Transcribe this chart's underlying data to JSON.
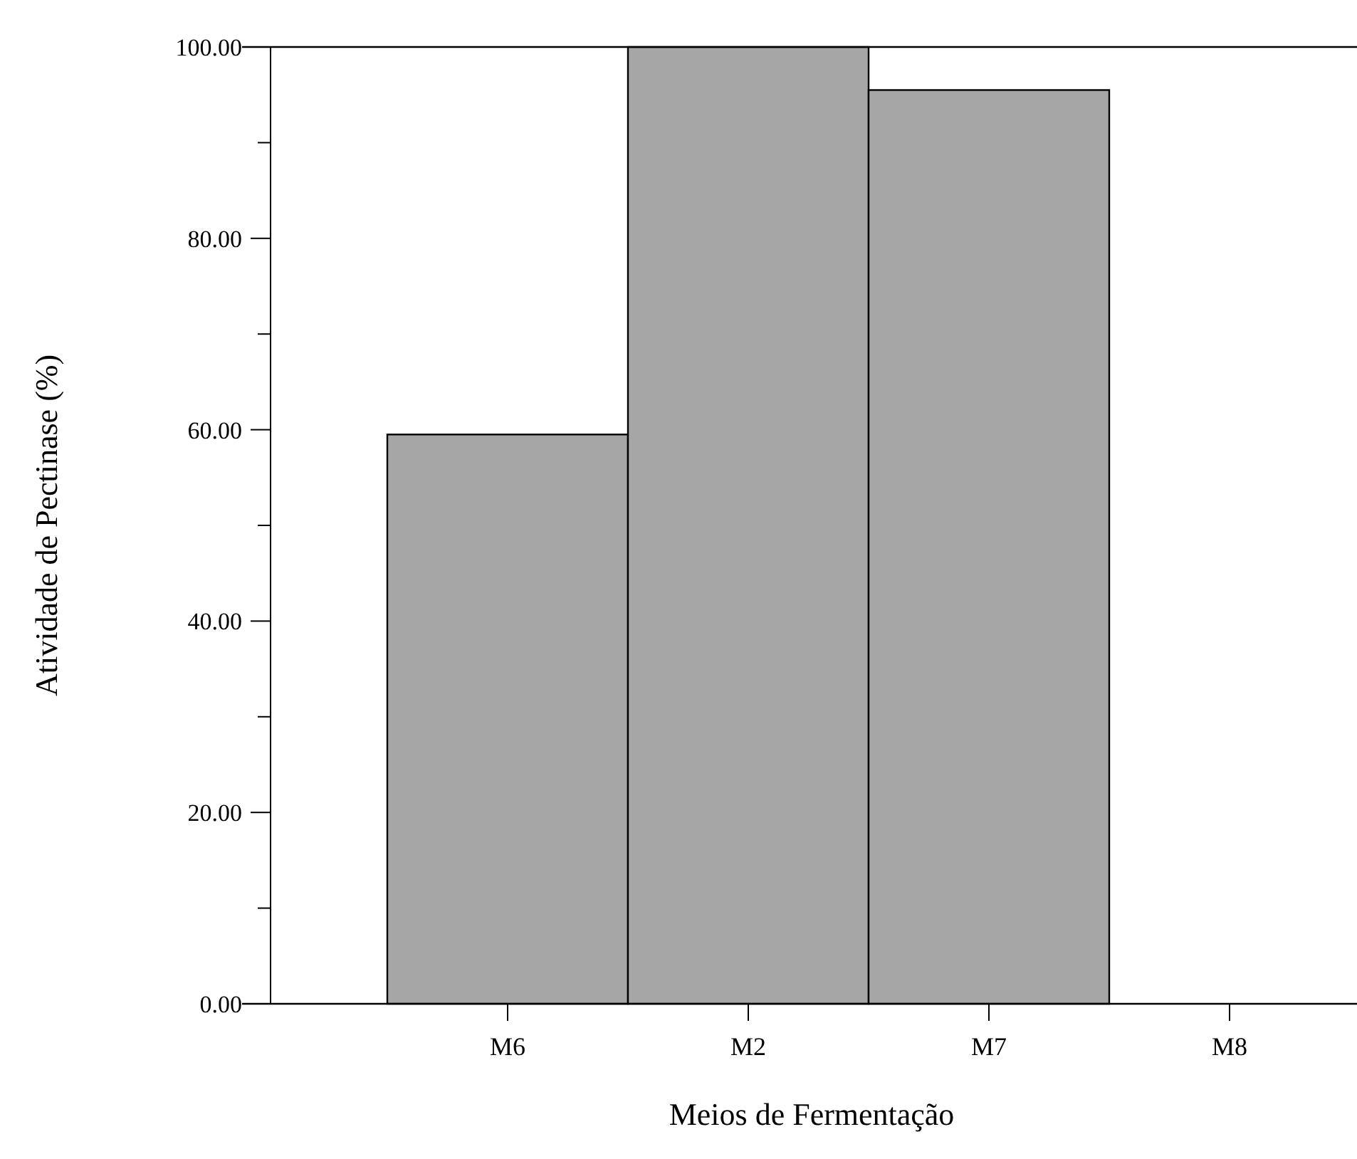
{
  "chart_data": {
    "type": "bar",
    "xlabel": "Meios de Fermentação",
    "ylabel": "Atividade de Pectinase (%)",
    "categories": [
      "M6",
      "M2",
      "M7",
      "M8"
    ],
    "values": [
      59.5,
      100,
      95.5,
      0
    ],
    "color": "#a6a6a6",
    "ylim": [
      0,
      100
    ],
    "yticks": [
      {
        "value": 0,
        "label": "0.00"
      },
      {
        "value": 10,
        "label": null
      },
      {
        "value": 20,
        "label": "20.00"
      },
      {
        "value": 30,
        "label": null
      },
      {
        "value": 40,
        "label": "40.00"
      },
      {
        "value": 50,
        "label": null
      },
      {
        "value": 60,
        "label": "60.00"
      },
      {
        "value": 70,
        "label": null
      },
      {
        "value": 80,
        "label": "80.00"
      },
      {
        "value": 90,
        "label": null
      },
      {
        "value": 100,
        "label": "100.00"
      }
    ]
  }
}
